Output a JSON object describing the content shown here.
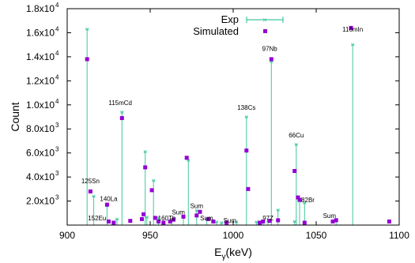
{
  "chart_data": {
    "type": "scatter",
    "xlabel_main": "E",
    "xlabel_sub": "γ",
    "xlabel_unit": "(keV)",
    "ylabel": "Count",
    "xlim": [
      900,
      1100
    ],
    "ylim": [
      0,
      18000
    ],
    "x_ticks": [
      900,
      950,
      1000,
      1050,
      1100
    ],
    "y_ticks": [
      {
        "value": 2000,
        "mant": "2.0x10",
        "exp": "3"
      },
      {
        "value": 4000,
        "mant": "4.0x10",
        "exp": "3"
      },
      {
        "value": 6000,
        "mant": "6.0x10",
        "exp": "3"
      },
      {
        "value": 8000,
        "mant": "8.0x10",
        "exp": "3"
      },
      {
        "value": 10000,
        "mant": "1.0x10",
        "exp": "4"
      },
      {
        "value": 12000,
        "mant": "1.2x10",
        "exp": "4"
      },
      {
        "value": 14000,
        "mant": "1.4x10",
        "exp": "4"
      },
      {
        "value": 16000,
        "mant": "1.6x10",
        "exp": "4"
      },
      {
        "value": 18000,
        "mant": "1.8x10",
        "exp": "4"
      }
    ],
    "grid": false,
    "legend_position": "top-center",
    "colors": {
      "exp": "#40c8a0",
      "simulated": "#9400d3"
    },
    "series": [
      {
        "name": "Exp",
        "style": "impulse",
        "x": [
          912,
          916,
          924,
          930,
          933,
          947,
          948,
          952,
          955,
          963,
          970,
          973,
          978,
          984,
          990,
          993,
          1002,
          1008,
          1014,
          1018,
          1021,
          1023,
          1027,
          1037,
          1038,
          1040,
          1043,
          1062,
          1072
        ],
        "values": [
          16300,
          2400,
          1600,
          500,
          9400,
          6100,
          650,
          3700,
          600,
          400,
          650,
          5400,
          1200,
          500,
          250,
          200,
          250,
          9000,
          250,
          300,
          300,
          13600,
          1250,
          300,
          6700,
          2000,
          1850,
          450,
          15000
        ]
      },
      {
        "name": "Simulated",
        "style": "points",
        "x": [
          912,
          914,
          924,
          925,
          928,
          933,
          938,
          945,
          946,
          947,
          951,
          953,
          955,
          958,
          962,
          964,
          970,
          972,
          978,
          980,
          985,
          988,
          996,
          1008,
          1009,
          1016,
          1018,
          1022,
          1023,
          1027,
          1037,
          1039,
          1040,
          1043,
          1060,
          1062,
          1071,
          1094
        ],
        "values": [
          13800,
          2800,
          1700,
          300,
          200,
          8900,
          350,
          500,
          900,
          4800,
          2900,
          600,
          300,
          200,
          300,
          450,
          700,
          5600,
          800,
          1100,
          500,
          300,
          200,
          6200,
          3000,
          200,
          300,
          350,
          13800,
          400,
          4500,
          2300,
          2100,
          200,
          300,
          400,
          16400,
          300
        ]
      }
    ],
    "annotations": [
      {
        "text": "116mIn",
        "x": 1072,
        "y": 15900
      },
      {
        "text": "97Nb",
        "x": 1022,
        "y": 14300
      },
      {
        "text": "115mCd",
        "x": 932,
        "y": 9800
      },
      {
        "text": "138Cs",
        "x": 1008,
        "y": 9400
      },
      {
        "text": "66Cu",
        "x": 1038,
        "y": 7100
      },
      {
        "text": "125Sn",
        "x": 914,
        "y": 3300
      },
      {
        "text": "140La",
        "x": 925,
        "y": 1800
      },
      {
        "text": "82Br",
        "x": 1045,
        "y": 1700
      },
      {
        "text": "Sum",
        "x": 978,
        "y": 1200
      },
      {
        "text": "Sum",
        "x": 967,
        "y": 700
      },
      {
        "text": "152Eu",
        "x": 918,
        "y": 200
      },
      {
        "text": "160Tb",
        "x": 960,
        "y": 200
      },
      {
        "text": "Sum",
        "x": 984,
        "y": 200
      },
      {
        "text": "Sum",
        "x": 998,
        "y": 0
      },
      {
        "text": "97Z",
        "x": 1021,
        "y": 200
      },
      {
        "text": "Sum",
        "x": 1058,
        "y": 400
      }
    ]
  }
}
